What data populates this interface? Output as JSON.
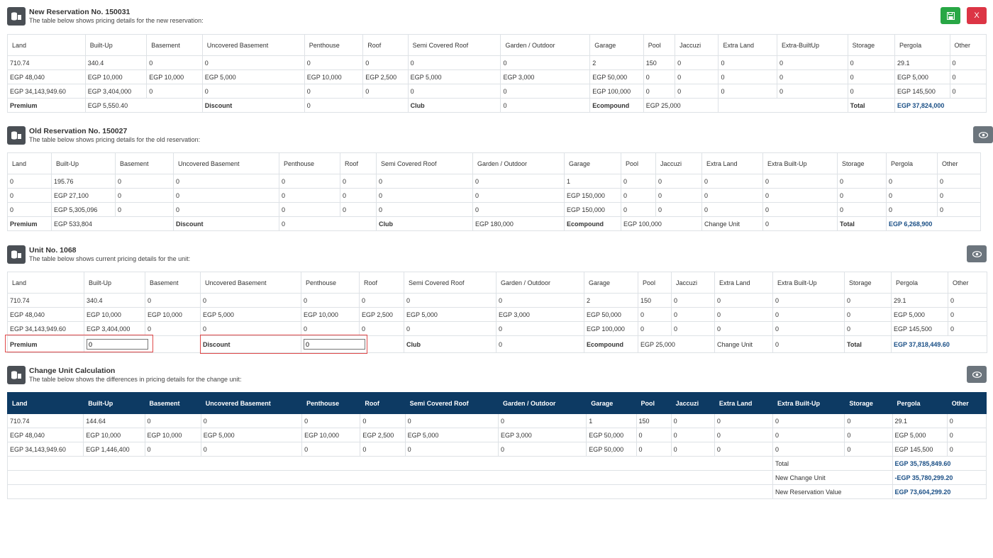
{
  "new_reservation": {
    "title": "New Reservation No. 150031",
    "subtitle": "The table below shows pricing details for the new reservation:",
    "headers": [
      "Land",
      "Built-Up",
      "Basement",
      "Uncovered Basement",
      "Penthouse",
      "Roof",
      "Semi Covered Roof",
      "Garden / Outdoor",
      "Garage",
      "Pool",
      "Jaccuzi",
      "Extra Land",
      "Extra-BuiltUp",
      "Storage",
      "Pergola",
      "Other"
    ],
    "rows": [
      [
        "710.74",
        "340.4",
        "0",
        "0",
        "0",
        "0",
        "0",
        "0",
        "2",
        "150",
        "0",
        "0",
        "0",
        "0",
        "29.1",
        "0"
      ],
      [
        "EGP 48,040",
        "EGP 10,000",
        "EGP 10,000",
        "EGP 5,000",
        "EGP 10,000",
        "EGP 2,500",
        "EGP 5,000",
        "EGP 3,000",
        "EGP 50,000",
        "0",
        "0",
        "0",
        "0",
        "0",
        "EGP 5,000",
        "0"
      ],
      [
        "EGP 34,143,949.60",
        "EGP 3,404,000",
        "0",
        "0",
        "0",
        "0",
        "0",
        "0",
        "EGP 100,000",
        "0",
        "0",
        "0",
        "0",
        "0",
        "EGP 145,500",
        "0"
      ]
    ],
    "summary": {
      "premium_label": "Premium",
      "premium_value": "EGP 5,550.40",
      "discount_label": "Discount",
      "discount_value": "0",
      "club_label": "Club",
      "club_value": "0",
      "ecompound_label": "Ecompound",
      "ecompound_value": "EGP 25,000",
      "total_label": "Total",
      "total_value": "EGP 37,824,000"
    }
  },
  "old_reservation": {
    "title": "Old Reservation No. 150027",
    "subtitle": "The table below shows pricing details for the old reservation:",
    "headers": [
      "Land",
      "Built-Up",
      "Basement",
      "Uncovered Basement",
      "Penthouse",
      "Roof",
      "Semi Covered Roof",
      "Garden / Outdoor",
      "Garage",
      "Pool",
      "Jaccuzi",
      "Extra Land",
      "Extra Built-Up",
      "Storage",
      "Pergola",
      "Other"
    ],
    "rows": [
      [
        "0",
        "195.76",
        "0",
        "0",
        "0",
        "0",
        "0",
        "0",
        "1",
        "0",
        "0",
        "0",
        "0",
        "0",
        "0",
        "0"
      ],
      [
        "0",
        "EGP 27,100",
        "0",
        "0",
        "0",
        "0",
        "0",
        "0",
        "EGP 150,000",
        "0",
        "0",
        "0",
        "0",
        "0",
        "0",
        "0"
      ],
      [
        "0",
        "EGP 5,305,096",
        "0",
        "0",
        "0",
        "0",
        "0",
        "0",
        "EGP 150,000",
        "0",
        "0",
        "0",
        "0",
        "0",
        "0",
        "0"
      ]
    ],
    "summary": {
      "premium_label": "Premium",
      "premium_value": "EGP 533,804",
      "discount_label": "Discount",
      "discount_value": "0",
      "club_label": "Club",
      "club_value": "EGP 180,000",
      "ecompound_label": "Ecompound",
      "ecompound_value": "EGP 100,000",
      "change_label": "Change Unit",
      "change_value": "0",
      "total_label": "Total",
      "total_value": "EGP 6,268,900"
    }
  },
  "unit": {
    "title": "Unit No. 1068",
    "subtitle": "The table below shows current pricing details for the unit:",
    "headers": [
      "Land",
      "Built-Up",
      "Basement",
      "Uncovered Basement",
      "Penthouse",
      "Roof",
      "Semi Covered Roof",
      "Garden / Outdoor",
      "Garage",
      "Pool",
      "Jaccuzi",
      "Extra Land",
      "Extra Built-Up",
      "Storage",
      "Pergola",
      "Other"
    ],
    "rows": [
      [
        "710.74",
        "340.4",
        "0",
        "0",
        "0",
        "0",
        "0",
        "0",
        "2",
        "150",
        "0",
        "0",
        "0",
        "0",
        "29.1",
        "0"
      ],
      [
        "EGP 48,040",
        "EGP 10,000",
        "EGP 10,000",
        "EGP 5,000",
        "EGP 10,000",
        "EGP 2,500",
        "EGP 5,000",
        "EGP 3,000",
        "EGP 50,000",
        "0",
        "0",
        "0",
        "0",
        "0",
        "EGP 5,000",
        "0"
      ],
      [
        "EGP 34,143,949.60",
        "EGP 3,404,000",
        "0",
        "0",
        "0",
        "0",
        "0",
        "0",
        "EGP 100,000",
        "0",
        "0",
        "0",
        "0",
        "0",
        "EGP 145,500",
        "0"
      ]
    ],
    "summary": {
      "premium_label": "Premium",
      "premium_input": "0",
      "discount_label": "Discount",
      "discount_input": "0",
      "club_label": "Club",
      "club_value": "0",
      "ecompound_label": "Ecompound",
      "ecompound_value": "EGP 25,000",
      "change_label": "Change Unit",
      "change_value": "0",
      "total_label": "Total",
      "total_value": "EGP 37,818,449.60"
    }
  },
  "change_calc": {
    "title": "Change Unit Calculation",
    "subtitle": "The table below shows the differences in pricing details for the change unit:",
    "headers": [
      "Land",
      "Built-Up",
      "Basement",
      "Uncovered Basement",
      "Penthouse",
      "Roof",
      "Semi Covered Roof",
      "Garden / Outdoor",
      "Garage",
      "Pool",
      "Jaccuzi",
      "Extra Land",
      "Extra Built-Up",
      "Storage",
      "Pergola",
      "Other"
    ],
    "rows": [
      [
        "710.74",
        "144.64",
        "0",
        "0",
        "0",
        "0",
        "0",
        "0",
        "1",
        "150",
        "0",
        "0",
        "0",
        "0",
        "29.1",
        "0"
      ],
      [
        "EGP 48,040",
        "EGP 10,000",
        "EGP 10,000",
        "EGP 5,000",
        "EGP 10,000",
        "EGP 2,500",
        "EGP 5,000",
        "EGP 3,000",
        "EGP 50,000",
        "0",
        "0",
        "0",
        "0",
        "0",
        "EGP 5,000",
        "0"
      ],
      [
        "EGP 34,143,949.60",
        "EGP 1,446,400",
        "0",
        "0",
        "0",
        "0",
        "0",
        "0",
        "EGP 50,000",
        "0",
        "0",
        "0",
        "0",
        "0",
        "EGP 145,500",
        "0"
      ]
    ],
    "totals": [
      {
        "label": "Total",
        "value": "EGP 35,785,849.60"
      },
      {
        "label": "New Change Unit",
        "value": "-EGP 35,780,299.20"
      },
      {
        "label": "New Reservation Value",
        "value": "EGP 73,604,299.20"
      }
    ]
  },
  "buttons": {
    "close_label": "X"
  },
  "colors": {
    "header_dark": "#0d3a63",
    "accent_blue": "#1a4f86",
    "save_green": "#28a745",
    "close_red": "#dc3545"
  }
}
